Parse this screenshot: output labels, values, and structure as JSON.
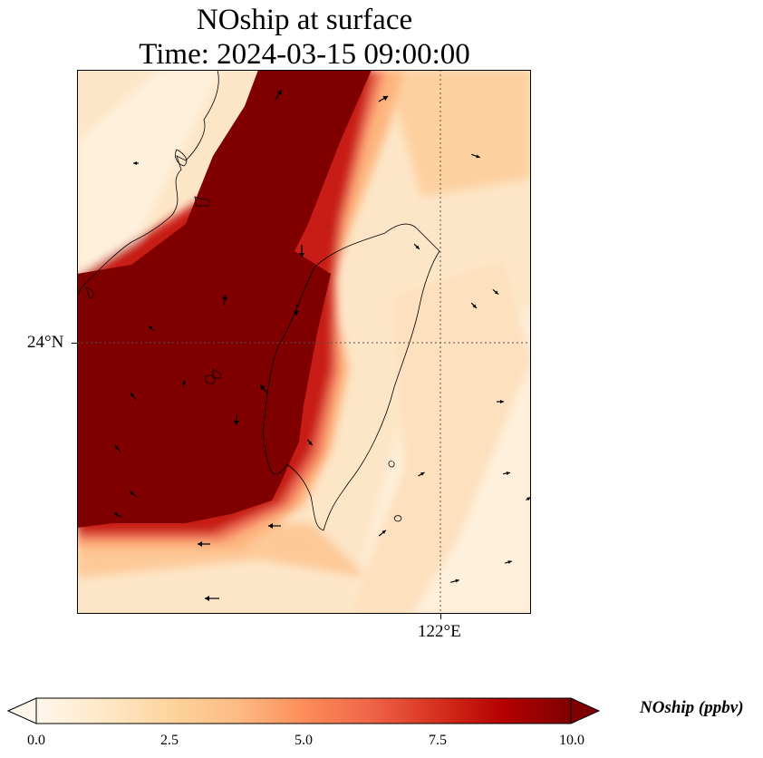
{
  "title": {
    "line1": "NOship at surface",
    "line2": "Time: 2024-03-15 09:00:00"
  },
  "axes": {
    "lat_label": "24°N",
    "lon_label": "122°E"
  },
  "colorbar": {
    "label": "NOship (ppbv)",
    "ticks": [
      "0.0",
      "2.5",
      "5.0",
      "7.5",
      "10.0"
    ],
    "colormap": "OrRd",
    "colors": [
      "#fff7ec",
      "#fee8c8",
      "#fdd49e",
      "#fdbb84",
      "#fc8d59",
      "#ef6548",
      "#d7301f",
      "#b30000",
      "#7f0000"
    ],
    "extend": "both"
  },
  "map": {
    "gridlines": "dotted",
    "coastline_color": "#000000",
    "high_concentration_color": "#800000"
  }
}
